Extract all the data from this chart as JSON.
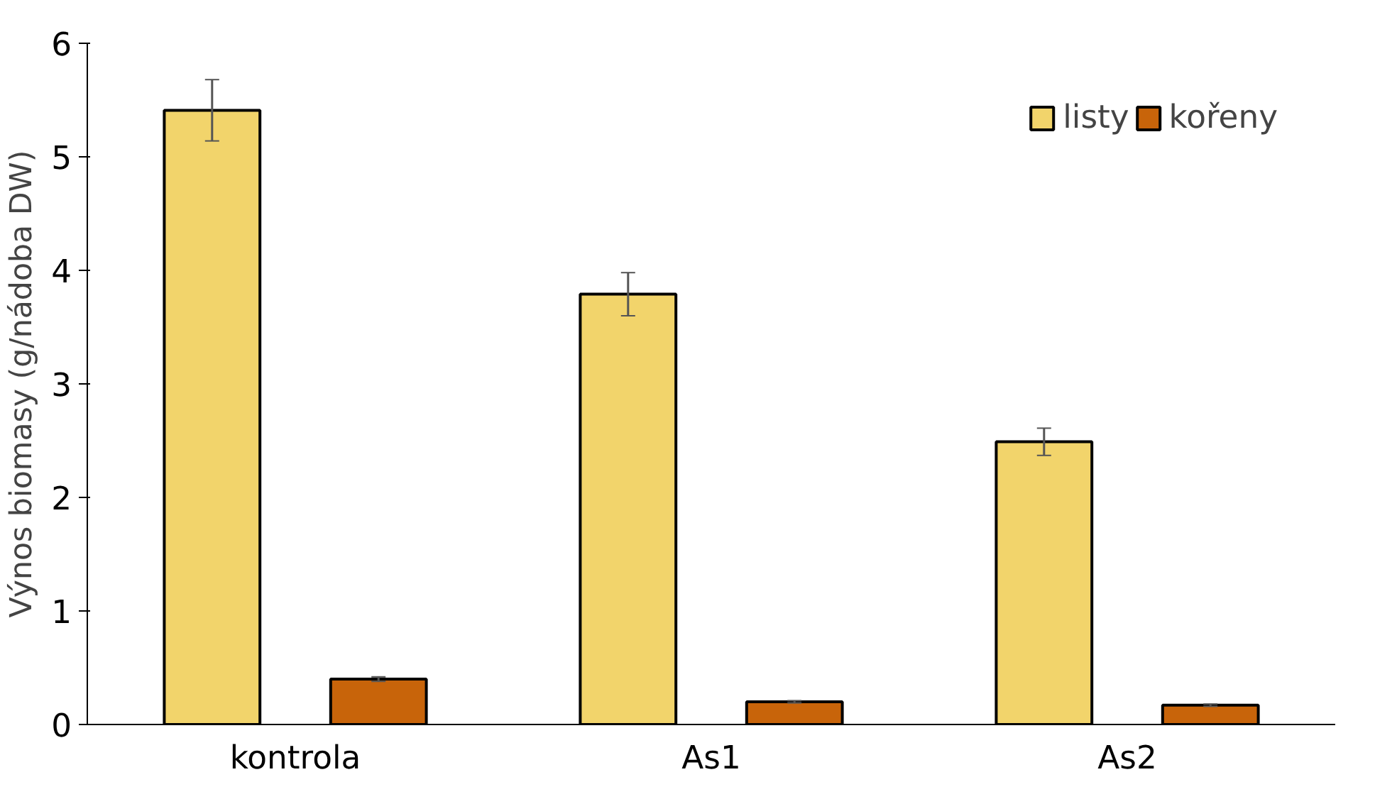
{
  "chart_data": {
    "type": "bar",
    "ylabel": "Výnos biomasy (g/nádoba DW)",
    "categories": [
      "kontrola",
      "As1",
      "As2"
    ],
    "series": [
      {
        "name": "listy",
        "color": "#f2d46b",
        "values": [
          5.41,
          3.79,
          2.49
        ],
        "errors": [
          0.27,
          0.19,
          0.12
        ]
      },
      {
        "name": "kořeny",
        "color": "#c8640a",
        "values": [
          0.4,
          0.2,
          0.17
        ],
        "errors": [
          0.02,
          0.01,
          0.01
        ]
      }
    ],
    "ylim": [
      0,
      6
    ],
    "yticks": [
      0,
      1,
      2,
      3,
      4,
      5,
      6
    ],
    "grid": false,
    "legend": "top right"
  }
}
